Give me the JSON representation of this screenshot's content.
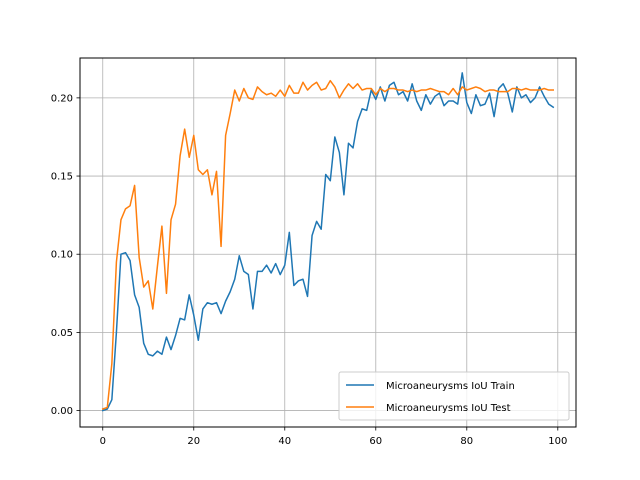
{
  "chart_data": {
    "type": "line",
    "title": "",
    "xlabel": "",
    "ylabel": "",
    "xlim": [
      -5,
      104
    ],
    "ylim": [
      -0.0105,
      0.2255
    ],
    "grid": true,
    "legend_placement": "lower-right",
    "x_ticks": [
      0,
      20,
      40,
      60,
      80,
      100
    ],
    "x_tick_labels": [
      "0",
      "20",
      "40",
      "60",
      "80",
      "100"
    ],
    "y_ticks": [
      0.0,
      0.05,
      0.1,
      0.15,
      0.2
    ],
    "y_tick_labels": [
      "0.00",
      "0.05",
      "0.10",
      "0.15",
      "0.20"
    ],
    "x": [
      0,
      1,
      2,
      3,
      4,
      5,
      6,
      7,
      8,
      9,
      10,
      11,
      12,
      13,
      14,
      15,
      16,
      17,
      18,
      19,
      20,
      21,
      22,
      23,
      24,
      25,
      26,
      27,
      28,
      29,
      30,
      31,
      32,
      33,
      34,
      35,
      36,
      37,
      38,
      39,
      40,
      41,
      42,
      43,
      44,
      45,
      46,
      47,
      48,
      49,
      50,
      51,
      52,
      53,
      54,
      55,
      56,
      57,
      58,
      59,
      60,
      61,
      62,
      63,
      64,
      65,
      66,
      67,
      68,
      69,
      70,
      71,
      72,
      73,
      74,
      75,
      76,
      77,
      78,
      79,
      80,
      81,
      82,
      83,
      84,
      85,
      86,
      87,
      88,
      89,
      90,
      91,
      92,
      93,
      94,
      95,
      96,
      97,
      98,
      99
    ],
    "series": [
      {
        "name": "Microaneurysms IoU Train",
        "color": "#1f77b4",
        "values": [
          0.0,
          0.001,
          0.007,
          0.05,
          0.1,
          0.101,
          0.096,
          0.074,
          0.066,
          0.043,
          0.036,
          0.035,
          0.038,
          0.036,
          0.047,
          0.039,
          0.048,
          0.059,
          0.058,
          0.074,
          0.061,
          0.045,
          0.065,
          0.069,
          0.068,
          0.069,
          0.062,
          0.07,
          0.076,
          0.084,
          0.099,
          0.089,
          0.087,
          0.065,
          0.089,
          0.089,
          0.093,
          0.088,
          0.094,
          0.087,
          0.093,
          0.114,
          0.08,
          0.083,
          0.084,
          0.073,
          0.112,
          0.121,
          0.116,
          0.151,
          0.147,
          0.175,
          0.165,
          0.138,
          0.171,
          0.168,
          0.185,
          0.193,
          0.192,
          0.205,
          0.199,
          0.207,
          0.198,
          0.208,
          0.21,
          0.202,
          0.204,
          0.198,
          0.209,
          0.198,
          0.192,
          0.202,
          0.196,
          0.201,
          0.203,
          0.195,
          0.198,
          0.198,
          0.196,
          0.216,
          0.197,
          0.19,
          0.202,
          0.195,
          0.196,
          0.203,
          0.188,
          0.206,
          0.209,
          0.203,
          0.191,
          0.207,
          0.2,
          0.202,
          0.197,
          0.2,
          0.207,
          0.201,
          0.196,
          0.194
        ]
      },
      {
        "name": "Microaneurysms IoU Test",
        "color": "#ff7f0e",
        "values": [
          0.001,
          0.002,
          0.03,
          0.095,
          0.122,
          0.129,
          0.131,
          0.144,
          0.098,
          0.079,
          0.083,
          0.065,
          0.092,
          0.118,
          0.075,
          0.122,
          0.132,
          0.163,
          0.18,
          0.162,
          0.176,
          0.154,
          0.151,
          0.154,
          0.138,
          0.153,
          0.105,
          0.176,
          0.19,
          0.205,
          0.198,
          0.206,
          0.2,
          0.199,
          0.207,
          0.204,
          0.202,
          0.203,
          0.201,
          0.205,
          0.201,
          0.208,
          0.203,
          0.203,
          0.21,
          0.205,
          0.208,
          0.21,
          0.205,
          0.206,
          0.211,
          0.207,
          0.2,
          0.205,
          0.209,
          0.206,
          0.209,
          0.205,
          0.206,
          0.206,
          0.202,
          0.206,
          0.204,
          0.206,
          0.206,
          0.205,
          0.205,
          0.204,
          0.205,
          0.204,
          0.205,
          0.205,
          0.206,
          0.205,
          0.204,
          0.204,
          0.202,
          0.206,
          0.202,
          0.207,
          0.205,
          0.206,
          0.207,
          0.206,
          0.204,
          0.205,
          0.205,
          0.204,
          0.204,
          0.204,
          0.206,
          0.206,
          0.205,
          0.206,
          0.205,
          0.205,
          0.205,
          0.206,
          0.205,
          0.205
        ]
      }
    ]
  }
}
